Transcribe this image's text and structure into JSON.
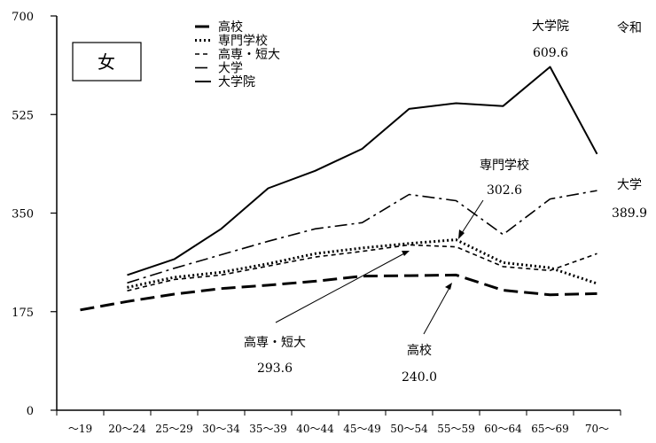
{
  "chart_data": {
    "type": "line",
    "corner_label": "令和",
    "box_label": "女",
    "ylim": [
      0,
      700
    ],
    "yticks": [
      0,
      175,
      350,
      525,
      700
    ],
    "categories": [
      "～19",
      "20～24",
      "25～29",
      "30～34",
      "35～39",
      "40～44",
      "45～49",
      "50～54",
      "55～59",
      "60～64",
      "65～69",
      "70～"
    ],
    "series": [
      {
        "name": "高校",
        "dash": "16,7",
        "width": 3,
        "values": [
          178,
          193,
          206,
          216,
          222,
          229,
          238,
          239,
          240.0,
          213,
          205,
          207
        ]
      },
      {
        "name": "専門学校",
        "dash": "2,3",
        "width": 3,
        "values": [
          null,
          218,
          236,
          245,
          260,
          278,
          288,
          296,
          302.6,
          262,
          253,
          225
        ]
      },
      {
        "name": "高専・短大",
        "dash": "5,4",
        "width": 1.6,
        "values": [
          null,
          212,
          232,
          240,
          256,
          272,
          282,
          293.6,
          290,
          255,
          248,
          278
        ]
      },
      {
        "name": "大学",
        "dash": "14,5,3,5",
        "width": 1.6,
        "values": [
          null,
          226,
          252,
          276,
          300,
          322,
          333,
          383,
          372,
          312,
          375,
          389.9
        ]
      },
      {
        "name": "大学院",
        "dash": "",
        "width": 2,
        "values": [
          null,
          240,
          268,
          322,
          394,
          425,
          464,
          535,
          545,
          540,
          609.6,
          455
        ]
      }
    ],
    "annotations": [
      {
        "name": "大学院",
        "value": "609.6"
      },
      {
        "name": "専門学校",
        "value": "302.6"
      },
      {
        "name": "大学",
        "value": "389.9"
      },
      {
        "name": "高専・短大",
        "value": "293.6"
      },
      {
        "name": "高校",
        "value": "240.0"
      }
    ]
  }
}
